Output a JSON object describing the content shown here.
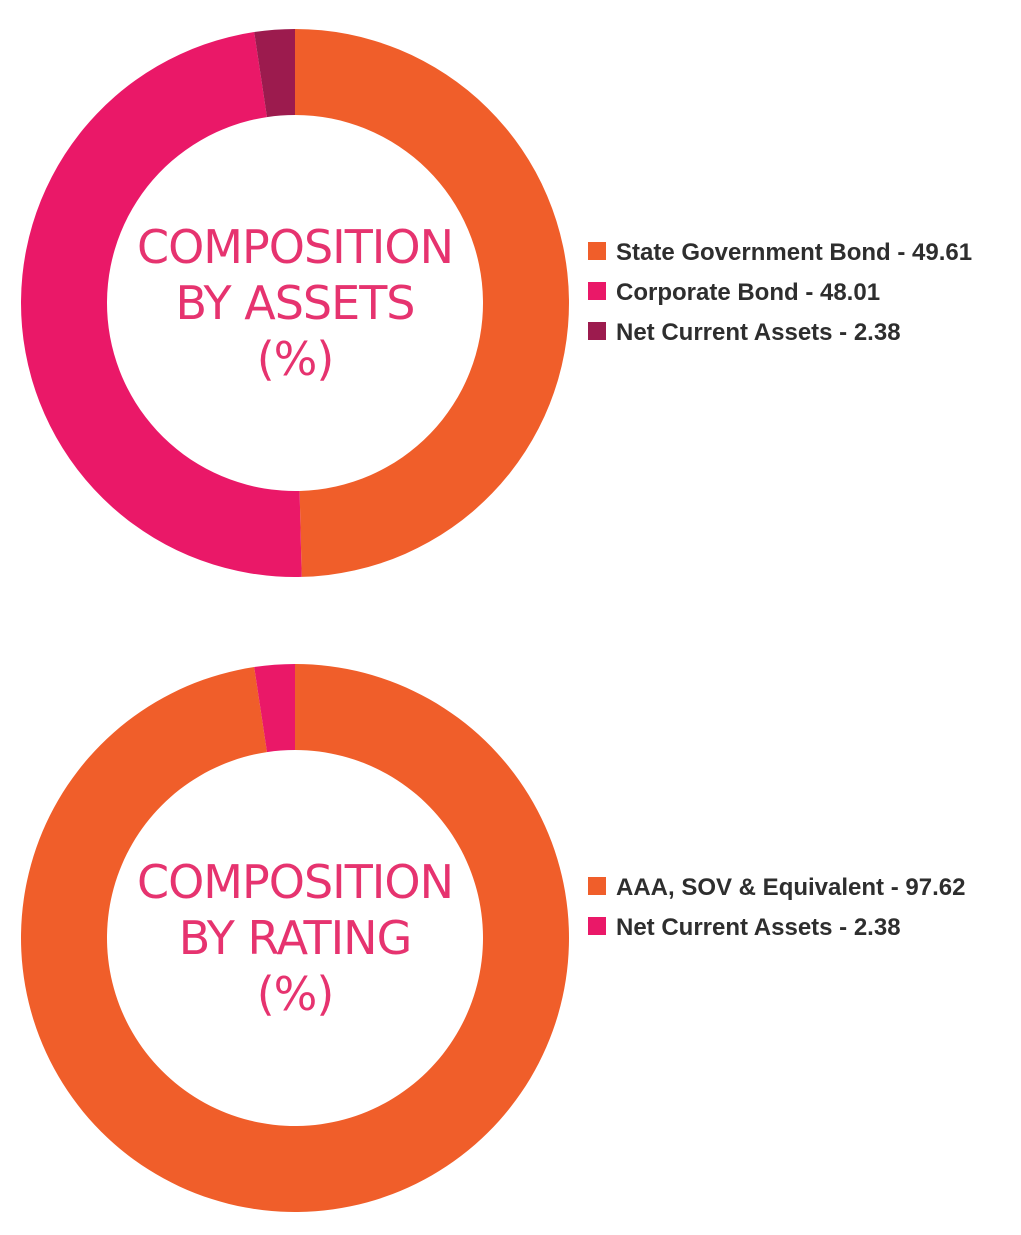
{
  "chart_data": [
    {
      "type": "pie",
      "title_lines": [
        "COMPOSITION",
        "BY ASSETS",
        "(%)"
      ],
      "categories": [
        "State Government Bond",
        "Corporate Bond",
        "Net Current Assets"
      ],
      "values": [
        49.61,
        48.01,
        2.38
      ],
      "colors": [
        "#f05e2a",
        "#ea1868",
        "#9c1b4e"
      ],
      "legend": [
        "State Government Bond - 49.61",
        "Corporate Bond - 48.01",
        "Net Current Assets - 2.38"
      ],
      "legend_position": "right",
      "style": "donut"
    },
    {
      "type": "pie",
      "title_lines": [
        "COMPOSITION",
        "BY RATING",
        "(%)"
      ],
      "categories": [
        "AAA, SOV & Equivalent",
        "Net Current Assets"
      ],
      "values": [
        97.62,
        2.38
      ],
      "colors": [
        "#f05e2a",
        "#ea1868"
      ],
      "legend": [
        "AAA, SOV & Equivalent - 97.62",
        "Net Current Assets - 2.38"
      ],
      "legend_position": "right",
      "style": "donut"
    }
  ]
}
